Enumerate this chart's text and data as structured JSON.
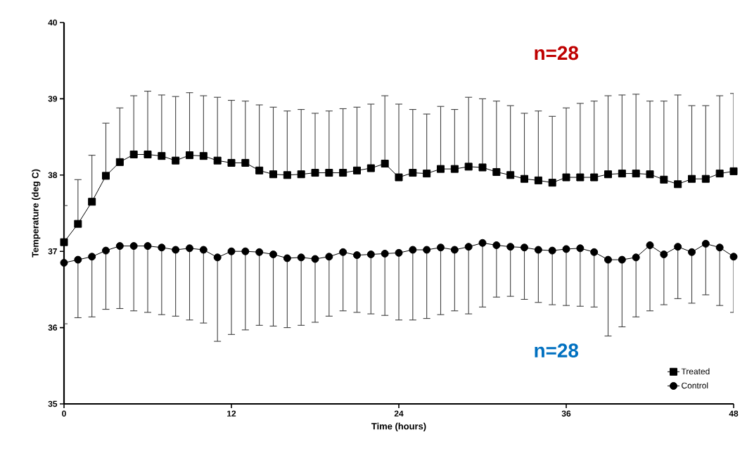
{
  "chart_data": {
    "type": "line",
    "xlabel": "Time (hours)",
    "ylabel": "Temperature (deg C)",
    "x": [
      0,
      1,
      2,
      3,
      4,
      5,
      6,
      7,
      8,
      9,
      10,
      11,
      12,
      13,
      14,
      15,
      16,
      17,
      18,
      19,
      20,
      21,
      22,
      23,
      24,
      25,
      26,
      27,
      28,
      29,
      30,
      31,
      32,
      33,
      34,
      35,
      36,
      37,
      38,
      39,
      40,
      41,
      42,
      43,
      44,
      45,
      46,
      47,
      48
    ],
    "xlim": [
      0,
      48
    ],
    "xticks": [
      0,
      12,
      24,
      36,
      48
    ],
    "ylim": [
      35,
      40
    ],
    "yticks": [
      35,
      36,
      37,
      38,
      39,
      40
    ],
    "legend": "bottom right",
    "grid": false,
    "line_style": "solid",
    "annotations": [
      "n=28",
      "n=28"
    ],
    "series": [
      {
        "name": "Treated",
        "color": "#000000",
        "marker": "square",
        "values": [
          37.12,
          37.36,
          37.65,
          37.99,
          38.17,
          38.27,
          38.27,
          38.25,
          38.19,
          38.26,
          38.25,
          38.19,
          38.16,
          38.16,
          38.06,
          38.01,
          38.0,
          38.01,
          38.03,
          38.03,
          38.03,
          38.06,
          38.09,
          38.15,
          37.97,
          38.03,
          38.02,
          38.08,
          38.08,
          38.11,
          38.1,
          38.04,
          38.0,
          37.95,
          37.93,
          37.9,
          37.97,
          37.97,
          37.97,
          38.01,
          38.02,
          38.02,
          38.01,
          37.94,
          37.88,
          37.95,
          37.95,
          38.02,
          38.05
        ],
        "errors": [
          [
            37.12,
            37.6
          ],
          [
            37.36,
            37.94
          ],
          [
            37.65,
            38.26
          ],
          [
            37.99,
            38.68
          ],
          [
            38.17,
            38.88
          ],
          [
            38.27,
            39.04
          ],
          [
            38.27,
            39.1
          ],
          [
            38.25,
            39.05
          ],
          [
            38.19,
            39.03
          ],
          [
            38.26,
            39.08
          ],
          [
            38.25,
            39.04
          ],
          [
            38.19,
            39.02
          ],
          [
            38.16,
            38.98
          ],
          [
            38.16,
            38.97
          ],
          [
            38.06,
            38.92
          ],
          [
            38.01,
            38.89
          ],
          [
            38.0,
            38.84
          ],
          [
            38.01,
            38.86
          ],
          [
            38.03,
            38.81
          ],
          [
            38.03,
            38.84
          ],
          [
            38.03,
            38.87
          ],
          [
            38.06,
            38.89
          ],
          [
            38.09,
            38.93
          ],
          [
            38.15,
            39.04
          ],
          [
            37.97,
            38.93
          ],
          [
            38.03,
            38.86
          ],
          [
            38.02,
            38.8
          ],
          [
            38.08,
            38.9
          ],
          [
            38.08,
            38.86
          ],
          [
            38.11,
            39.02
          ],
          [
            38.1,
            39.0
          ],
          [
            38.04,
            38.97
          ],
          [
            38.0,
            38.91
          ],
          [
            37.95,
            38.81
          ],
          [
            37.93,
            38.84
          ],
          [
            37.9,
            38.77
          ],
          [
            37.97,
            38.88
          ],
          [
            37.97,
            38.94
          ],
          [
            37.97,
            38.97
          ],
          [
            38.01,
            39.04
          ],
          [
            38.02,
            39.05
          ],
          [
            38.02,
            39.06
          ],
          [
            38.01,
            38.97
          ],
          [
            37.94,
            38.97
          ],
          [
            37.88,
            39.05
          ],
          [
            37.95,
            38.91
          ],
          [
            37.95,
            38.91
          ],
          [
            38.02,
            39.04
          ],
          [
            38.05,
            39.07
          ]
        ]
      },
      {
        "name": "Control",
        "color": "#000000",
        "marker": "circle",
        "values": [
          36.85,
          36.89,
          36.93,
          37.01,
          37.07,
          37.07,
          37.07,
          37.05,
          37.02,
          37.04,
          37.02,
          36.92,
          37.0,
          37.0,
          36.99,
          36.96,
          36.91,
          36.92,
          36.9,
          36.93,
          36.99,
          36.95,
          36.96,
          36.97,
          36.98,
          37.02,
          37.02,
          37.05,
          37.02,
          37.06,
          37.11,
          37.08,
          37.06,
          37.05,
          37.02,
          37.01,
          37.03,
          37.04,
          36.99,
          36.89,
          36.89,
          36.92,
          37.08,
          36.96,
          37.06,
          36.99,
          37.1,
          37.05,
          36.93
        ],
        "errors": [
          [
            36.05,
            36.85
          ],
          [
            36.13,
            36.89
          ],
          [
            36.14,
            36.93
          ],
          [
            36.24,
            37.01
          ],
          [
            36.25,
            37.07
          ],
          [
            36.22,
            37.07
          ],
          [
            36.2,
            37.07
          ],
          [
            36.17,
            37.05
          ],
          [
            36.15,
            37.02
          ],
          [
            36.1,
            37.04
          ],
          [
            36.06,
            37.02
          ],
          [
            35.82,
            36.92
          ],
          [
            35.91,
            37.0
          ],
          [
            35.97,
            37.0
          ],
          [
            36.03,
            36.99
          ],
          [
            36.02,
            36.96
          ],
          [
            36.0,
            36.91
          ],
          [
            36.03,
            36.92
          ],
          [
            36.07,
            36.9
          ],
          [
            36.15,
            36.93
          ],
          [
            36.22,
            36.99
          ],
          [
            36.2,
            36.95
          ],
          [
            36.18,
            36.96
          ],
          [
            36.16,
            36.97
          ],
          [
            36.1,
            36.98
          ],
          [
            36.1,
            37.02
          ],
          [
            36.12,
            37.02
          ],
          [
            36.17,
            37.05
          ],
          [
            36.22,
            37.02
          ],
          [
            36.18,
            37.06
          ],
          [
            36.27,
            37.11
          ],
          [
            36.4,
            37.08
          ],
          [
            36.41,
            37.06
          ],
          [
            36.37,
            37.05
          ],
          [
            36.33,
            37.02
          ],
          [
            36.3,
            37.01
          ],
          [
            36.29,
            37.03
          ],
          [
            36.28,
            37.04
          ],
          [
            36.27,
            36.99
          ],
          [
            35.89,
            36.89
          ],
          [
            36.01,
            36.89
          ],
          [
            36.14,
            36.92
          ],
          [
            36.22,
            37.08
          ],
          [
            36.3,
            36.96
          ],
          [
            36.38,
            37.06
          ],
          [
            36.32,
            36.99
          ],
          [
            36.43,
            37.1
          ],
          [
            36.29,
            37.05
          ],
          [
            36.2,
            36.93
          ]
        ]
      }
    ]
  }
}
